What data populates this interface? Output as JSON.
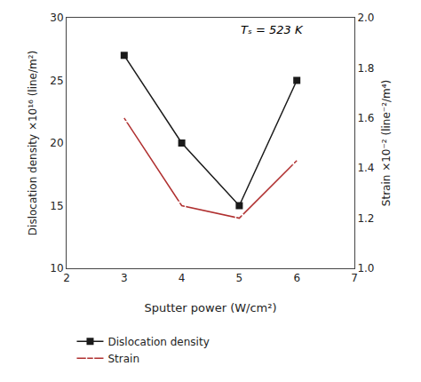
{
  "chart_data": {
    "type": "line",
    "x": [
      3,
      4,
      5,
      6
    ],
    "series": [
      {
        "name": "Dislocation density",
        "color": "#1a1a1a",
        "marker": "square",
        "line_style": "solid",
        "values": [
          27,
          20,
          15,
          25
        ]
      },
      {
        "name": "Strain",
        "color": "#b03030",
        "marker": "square-open",
        "line_style": "solid",
        "axis": "y2",
        "values": [
          1.6,
          1.25,
          1.2,
          1.43
        ]
      }
    ],
    "xlabel": "Sputter power (W/cm²)",
    "ylabel": "Dislocation density ×10¹⁶ (line/m²)",
    "y2label": "Strain ×10⁻² (line⁻²/m⁴)",
    "annotation": "Tₛ = 523 K",
    "xlim": [
      2,
      7
    ],
    "xticks": [
      2,
      3,
      4,
      5,
      6,
      7
    ],
    "ylim": [
      10,
      30
    ],
    "yticks": [
      10,
      15,
      20,
      25,
      30
    ],
    "y2lim": [
      1.0,
      2.0
    ],
    "y2ticks": [
      {
        "value": 1.0,
        "label": "1.0"
      },
      1.2,
      1.4,
      1.6,
      1.8,
      {
        "value": 2.0,
        "label": "2.0"
      }
    ],
    "grid": false,
    "legend": "bottom"
  }
}
